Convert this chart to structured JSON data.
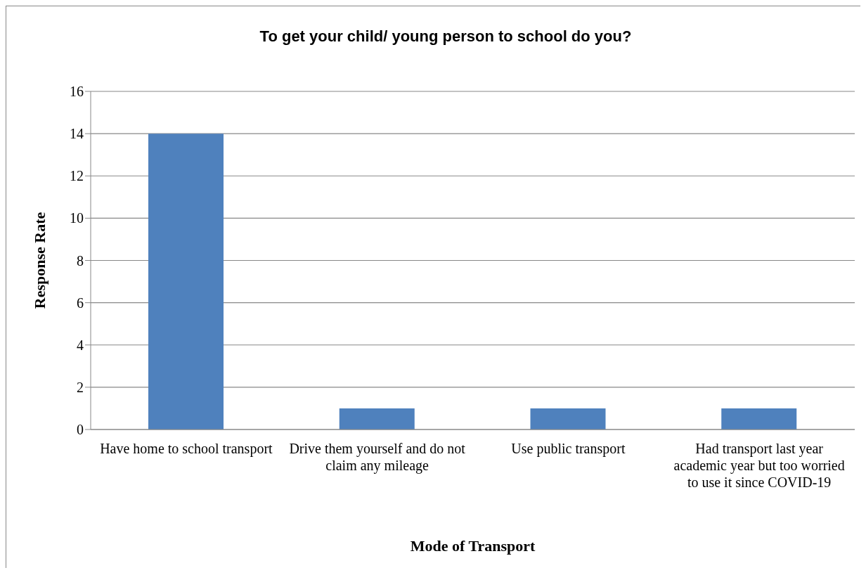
{
  "chart_data": {
    "type": "bar",
    "title": "To get your child/ young person to school do you?",
    "xlabel": "Mode of Transport",
    "ylabel": "Response Rate",
    "categories": [
      "Have home to school transport",
      "Drive them yourself and do not claim any mileage",
      "Use public transport",
      "Had transport last year academic year but too worried to use it since COVID-19"
    ],
    "values": [
      14,
      1,
      1,
      1
    ],
    "color": "#4f81bd",
    "ylim": [
      0,
      16
    ],
    "yticks": [
      0,
      2,
      4,
      6,
      8,
      10,
      12,
      14,
      16
    ],
    "grid": "y",
    "legend": false
  }
}
